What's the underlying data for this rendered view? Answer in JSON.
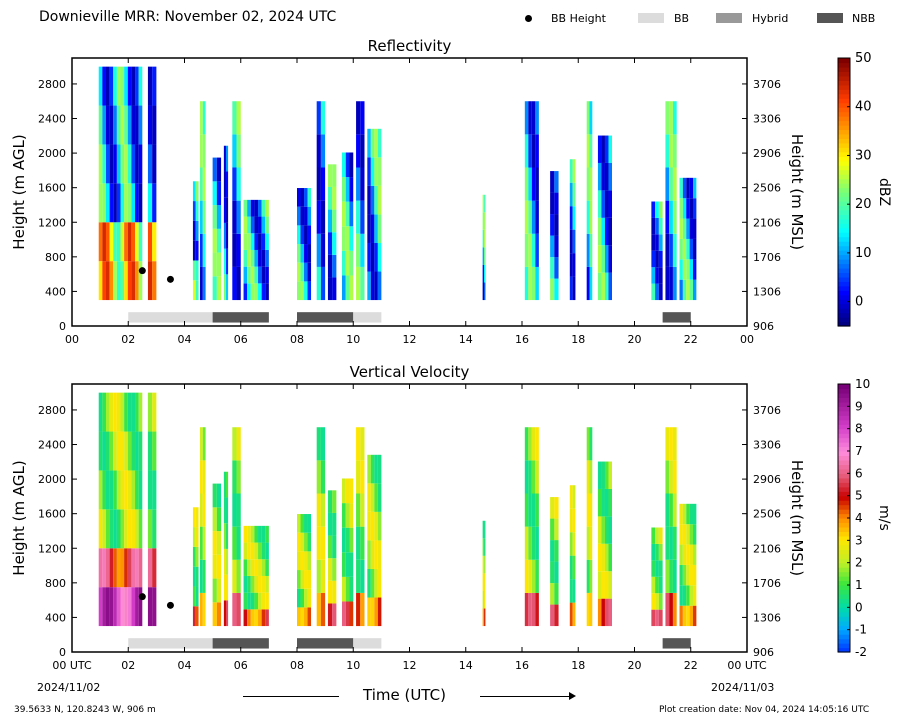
{
  "header": {
    "title": "Downieville MRR:  November 02, 2024 UTC",
    "legend": [
      {
        "label": "BB Height",
        "kind": "dot",
        "color": "#000000"
      },
      {
        "label": "BB",
        "kind": "box",
        "color": "#dcdcdc"
      },
      {
        "label": "Hybrid",
        "kind": "box",
        "color": "#999999"
      },
      {
        "label": "NBB",
        "kind": "box",
        "color": "#555555"
      }
    ]
  },
  "chart_data": [
    {
      "type": "heatmap",
      "title": "Reflectivity",
      "xlabel": "",
      "ylabel": "Height (m AGL)",
      "ylabel_right": "Height (m MSL)",
      "xlim": [
        0,
        24
      ],
      "ylim": [
        0,
        3100
      ],
      "x_ticks": [
        "00",
        "02",
        "04",
        "06",
        "08",
        "10",
        "12",
        "14",
        "16",
        "18",
        "20",
        "22",
        "00"
      ],
      "y_ticks": [
        0,
        400,
        800,
        1200,
        1600,
        2000,
        2400,
        2800
      ],
      "y_right_ticks": [
        906,
        1306,
        1706,
        2106,
        2506,
        2906,
        3306,
        3706
      ],
      "colorbar": {
        "label": "dBZ",
        "min": -5,
        "max": 50,
        "ticks": [
          0,
          10,
          20,
          30,
          40,
          50
        ]
      },
      "bright_band_height": [
        {
          "time_h": 2.5,
          "height_m": 640
        },
        {
          "time_h": 3.5,
          "height_m": 540
        }
      ],
      "classification_bars": [
        {
          "start_h": 2.0,
          "end_h": 5.0,
          "class": "BB"
        },
        {
          "start_h": 5.0,
          "end_h": 7.0,
          "class": "NBB"
        },
        {
          "start_h": 8.0,
          "end_h": 10.0,
          "class": "NBB"
        },
        {
          "start_h": 10.0,
          "end_h": 11.0,
          "class": "BB"
        },
        {
          "start_h": 21.0,
          "end_h": 22.0,
          "class": "NBB"
        }
      ]
    },
    {
      "type": "heatmap",
      "title": "Vertical Velocity",
      "xlabel": "Time (UTC)",
      "ylabel": "Height (m AGL)",
      "ylabel_right": "Height (m MSL)",
      "xlim": [
        0,
        24
      ],
      "ylim": [
        0,
        3100
      ],
      "x_ticks": [
        "00 UTC",
        "02",
        "04",
        "06",
        "08",
        "10",
        "12",
        "14",
        "16",
        "18",
        "20",
        "22",
        "00 UTC"
      ],
      "x_date_start": "2024/11/02",
      "x_date_end": "2024/11/03",
      "y_ticks": [
        0,
        400,
        800,
        1200,
        1600,
        2000,
        2400,
        2800
      ],
      "y_right_ticks": [
        906,
        1306,
        1706,
        2106,
        2506,
        2906,
        3306,
        3706
      ],
      "colorbar": {
        "label": "m/s",
        "min": -2,
        "max": 10,
        "ticks": [
          -2,
          -1,
          0,
          1,
          2,
          3,
          4,
          5,
          6,
          7,
          8,
          9,
          10
        ]
      },
      "bright_band_height": [
        {
          "time_h": 2.5,
          "height_m": 640
        },
        {
          "time_h": 3.5,
          "height_m": 540
        }
      ],
      "classification_bars": [
        {
          "start_h": 2.0,
          "end_h": 5.0,
          "class": "BB"
        },
        {
          "start_h": 5.0,
          "end_h": 7.0,
          "class": "NBB"
        },
        {
          "start_h": 8.0,
          "end_h": 10.0,
          "class": "NBB"
        },
        {
          "start_h": 10.0,
          "end_h": 11.0,
          "class": "BB"
        },
        {
          "start_h": 21.0,
          "end_h": 22.0,
          "class": "NBB"
        }
      ]
    }
  ],
  "footer": {
    "location": "39.5633 N, 120.8243 W, 906 m",
    "created": "Plot creation date: Nov 04, 2024 14:05:16 UTC"
  },
  "colors": {
    "bb": "#dcdcdc",
    "hybrid": "#999999",
    "nbb": "#555555"
  }
}
